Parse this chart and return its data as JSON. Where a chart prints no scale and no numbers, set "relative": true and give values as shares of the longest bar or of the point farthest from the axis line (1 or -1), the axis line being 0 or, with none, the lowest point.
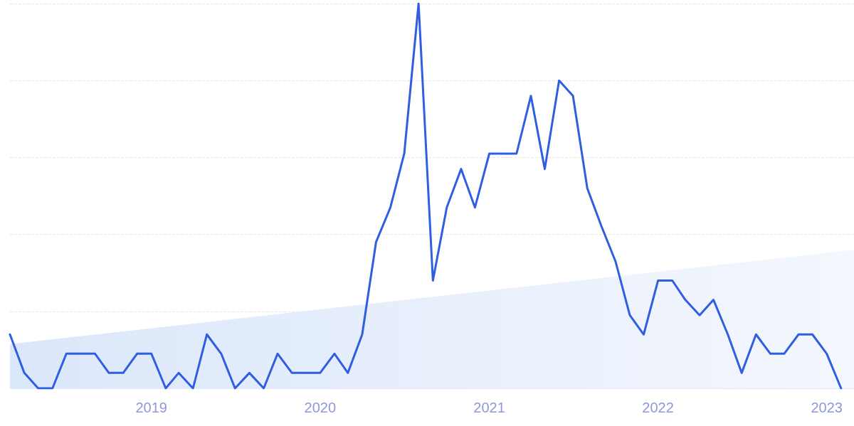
{
  "chart_data": {
    "type": "line",
    "relative": true,
    "grid": "y",
    "marker": "none",
    "line_style": "solid",
    "xlim": [
      "2018-03",
      "2023-03"
    ],
    "xticks": [
      "2019",
      "2020",
      "2021",
      "2022",
      "2023"
    ],
    "series": [
      {
        "type": "area",
        "color": "#dbe7fa",
        "x": [
          "2018-03",
          "2023-03"
        ],
        "values": [
          0.115,
          0.36
        ]
      },
      {
        "color": "#2f5fe0",
        "x": [
          "2018-03",
          "2018-04",
          "2018-05",
          "2018-06",
          "2018-07",
          "2018-08",
          "2018-09",
          "2018-10",
          "2018-11",
          "2018-12",
          "2019-01",
          "2019-02",
          "2019-03",
          "2019-04",
          "2019-05",
          "2019-06",
          "2019-07",
          "2019-08",
          "2019-09",
          "2019-10",
          "2019-11",
          "2019-12",
          "2020-01",
          "2020-02",
          "2020-03",
          "2020-04",
          "2020-05",
          "2020-06",
          "2020-07",
          "2020-08",
          "2020-09",
          "2020-10",
          "2020-11",
          "2020-12",
          "2021-01",
          "2021-02",
          "2021-03",
          "2021-04",
          "2021-05",
          "2021-06",
          "2021-07",
          "2021-08",
          "2021-09",
          "2021-10",
          "2021-11",
          "2021-12",
          "2022-01",
          "2022-02",
          "2022-03",
          "2022-04",
          "2022-05",
          "2022-06",
          "2022-07",
          "2022-08",
          "2022-09",
          "2022-10",
          "2022-11",
          "2022-12",
          "2023-01",
          "2023-02"
        ],
        "values": [
          0.14,
          0.04,
          0,
          0,
          0.09,
          0.09,
          0.09,
          0.04,
          0.04,
          0.09,
          0.09,
          0,
          0.04,
          0,
          0.14,
          0.09,
          0,
          0.04,
          0,
          0.09,
          0.04,
          0.04,
          0.04,
          0.09,
          0.04,
          0.14,
          0.38,
          0.47,
          0.61,
          1,
          0.28,
          0.47,
          0.57,
          0.47,
          0.61,
          0.61,
          0.61,
          0.76,
          0.57,
          0.8,
          0.76,
          0.52,
          0.42,
          0.33,
          0.19,
          0.14,
          0.28,
          0.28,
          0.23,
          0.19,
          0.23,
          0.14,
          0.04,
          0.14,
          0.09,
          0.09,
          0.14,
          0.14,
          0.09,
          0
        ]
      }
    ]
  }
}
